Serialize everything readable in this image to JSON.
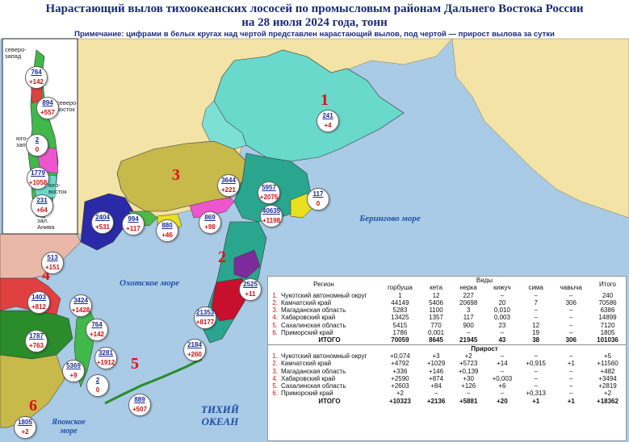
{
  "title_line1": "Нарастающий вылов тихоокеанских лососей по промысловым районам Дальнего Востока России",
  "title_line2": "на 28 июля 2024 года, тонн",
  "note": "Примечание: цифрами в белых кругах над чертой представлен нарастающий вылов, под чертой — прирост вылова за сутки",
  "seas": {
    "okhotsk": "Охотское море",
    "bering": "Берингово море",
    "pacific": "ТИХИЙ ОКЕАН",
    "japan": "Японское море"
  },
  "region_numbers": [
    "1",
    "2",
    "3",
    "4",
    "5",
    "6"
  ],
  "inset_labels": {
    "nw": "северо-запад",
    "ne": "северо-восток",
    "sw": "юго-запад",
    "se": "юго-восток",
    "aniva": "зал. Анива"
  },
  "bubbles": [
    {
      "total": "764",
      "delta": "+142"
    },
    {
      "total": "894",
      "delta": "+557"
    },
    {
      "total": "2",
      "delta": "0"
    },
    {
      "total": "1779",
      "delta": "+1058"
    },
    {
      "total": "231",
      "delta": "+64"
    },
    {
      "total": "241",
      "delta": "+4"
    },
    {
      "total": "3644",
      "delta": "+221"
    },
    {
      "total": "5957",
      "delta": "+2075"
    },
    {
      "total": "117",
      "delta": "0"
    },
    {
      "total": "40635",
      "delta": "+1198"
    },
    {
      "total": "2404",
      "delta": "+531"
    },
    {
      "total": "994",
      "delta": "+117"
    },
    {
      "total": "880",
      "delta": "+46"
    },
    {
      "total": "869",
      "delta": "+98"
    },
    {
      "total": "513",
      "delta": "+151"
    },
    {
      "total": "2525",
      "delta": "+11"
    },
    {
      "total": "1403",
      "delta": "+812"
    },
    {
      "total": "3424",
      "delta": "+1428"
    },
    {
      "total": "21353",
      "delta": "+8177"
    },
    {
      "total": "764",
      "delta": "+142"
    },
    {
      "total": "1787",
      "delta": "+763"
    },
    {
      "total": "2184",
      "delta": "+260"
    },
    {
      "total": "3281",
      "delta": "+1912"
    },
    {
      "total": "5369",
      "delta": "+9"
    },
    {
      "total": "2",
      "delta": "0"
    },
    {
      "total": "889",
      "delta": "+507"
    },
    {
      "total": "1805",
      "delta": "+2"
    }
  ],
  "table": {
    "col_region": "Регион",
    "col_species_group": "Виды",
    "col_total": "Итого",
    "species": [
      "горбуша",
      "кета",
      "нерка",
      "кижуч",
      "сима",
      "чавыча"
    ],
    "catch_rows": [
      {
        "n": "1.",
        "region": "Чукотский автономный округ",
        "vals": [
          "1",
          "12",
          "227",
          "–",
          "–",
          "–",
          "240"
        ]
      },
      {
        "n": "2.",
        "region": "Камчатский край",
        "vals": [
          "44149",
          "5406",
          "20698",
          "20",
          "7",
          "306",
          "70586"
        ]
      },
      {
        "n": "3.",
        "region": "Магаданская область",
        "vals": [
          "5283",
          "1100",
          "3",
          "0,010",
          "–",
          "–",
          "6386"
        ]
      },
      {
        "n": "4.",
        "region": "Хабаровский край",
        "vals": [
          "13425",
          "1357",
          "117",
          "0,003",
          "–",
          "–",
          "14899"
        ]
      },
      {
        "n": "5.",
        "region": "Сахалинская область",
        "vals": [
          "5415",
          "770",
          "900",
          "23",
          "12",
          "–",
          "7120"
        ]
      },
      {
        "n": "6.",
        "region": "Приморский край",
        "vals": [
          "1786",
          "0,001",
          "–",
          "–",
          "19",
          "–",
          "1805"
        ]
      }
    ],
    "catch_total": {
      "label": "ИТОГО",
      "vals": [
        "70059",
        "8645",
        "21945",
        "43",
        "38",
        "306",
        "101036"
      ]
    },
    "growth_header": "Прирост",
    "growth_rows": [
      {
        "n": "1.",
        "region": "Чукотский автономный округ",
        "vals": [
          "+0,074",
          "+3",
          "+2",
          "–",
          "–",
          "–",
          "+5"
        ]
      },
      {
        "n": "2.",
        "region": "Камчатский край",
        "vals": [
          "+4792",
          "+1029",
          "+5723",
          "+14",
          "+0,915",
          "+1",
          "+11560"
        ]
      },
      {
        "n": "3.",
        "region": "Магаданская область",
        "vals": [
          "+336",
          "+146",
          "+0,139",
          "–",
          "–",
          "–",
          "+482"
        ]
      },
      {
        "n": "4.",
        "region": "Хабаровский край",
        "vals": [
          "+2590",
          "+874",
          "+30",
          "+0,003",
          "–",
          "–",
          "+3494"
        ]
      },
      {
        "n": "5.",
        "region": "Сахалинская область",
        "vals": [
          "+2603",
          "+84",
          "+126",
          "+6",
          "–",
          "–",
          "+2819"
        ]
      },
      {
        "n": "6.",
        "region": "Приморский край",
        "vals": [
          "+2",
          "–",
          "–",
          "–",
          "+0,313",
          "–",
          "+2"
        ]
      }
    ],
    "growth_total": {
      "label": "ИТОГО",
      "vals": [
        "+10323",
        "+2136",
        "+5881",
        "+20",
        "+1",
        "+1",
        "+18362"
      ]
    }
  },
  "colors": {
    "sea": "#a9cbe6",
    "land": "#f3e3a6",
    "chukotka": "#69d9cc",
    "kamchatka": "#2aa68f",
    "magadan": "#c7b94a",
    "khabarovsk": "#2a2aa8",
    "sakhalin": "#42b83e",
    "primorye": "#41b84a",
    "highlight_red": "#c8102e",
    "purple": "#7c2a9c",
    "pink": "#ee56cf",
    "title": "#1a2b7a"
  }
}
